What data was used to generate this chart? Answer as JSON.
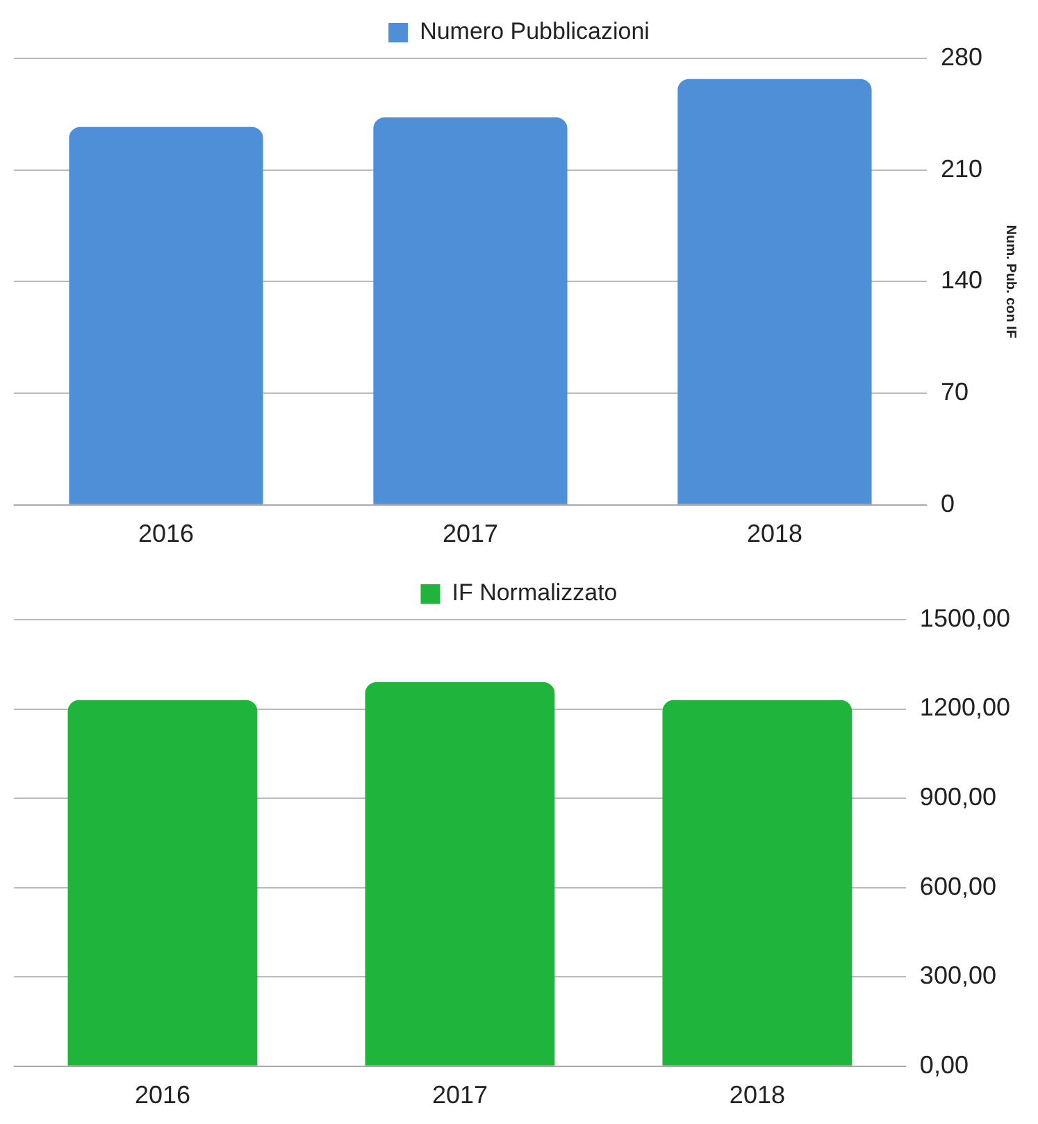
{
  "chart_data": [
    {
      "type": "bar",
      "categories": [
        "2016",
        "2017",
        "2018"
      ],
      "series": [
        {
          "name": "Numero Pubblicazioni",
          "color": "#4f8fd8",
          "values": [
            237,
            243,
            267
          ]
        }
      ],
      "ylabel": "Num. Pub. con IF",
      "ylim": [
        0,
        280
      ],
      "yticks": [
        0,
        70,
        140,
        210,
        280
      ],
      "grid": "y",
      "legend": "top"
    },
    {
      "type": "bar",
      "categories": [
        "2016",
        "2017",
        "2018"
      ],
      "series": [
        {
          "name": "IF Normalizzato",
          "color": "#1fb43c",
          "values": [
            1230,
            1290,
            1230
          ]
        }
      ],
      "ylim": [
        0,
        1500
      ],
      "yticks": [
        {
          "value": 0,
          "label": "0,00"
        },
        {
          "value": 300,
          "label": "300,00"
        },
        {
          "value": 600,
          "label": "600,00"
        },
        {
          "value": 900,
          "label": "900,00"
        },
        {
          "value": 1200,
          "label": "1200,00"
        },
        {
          "value": 1500,
          "label": "1500,00"
        }
      ],
      "grid": "y",
      "legend": "top"
    }
  ]
}
